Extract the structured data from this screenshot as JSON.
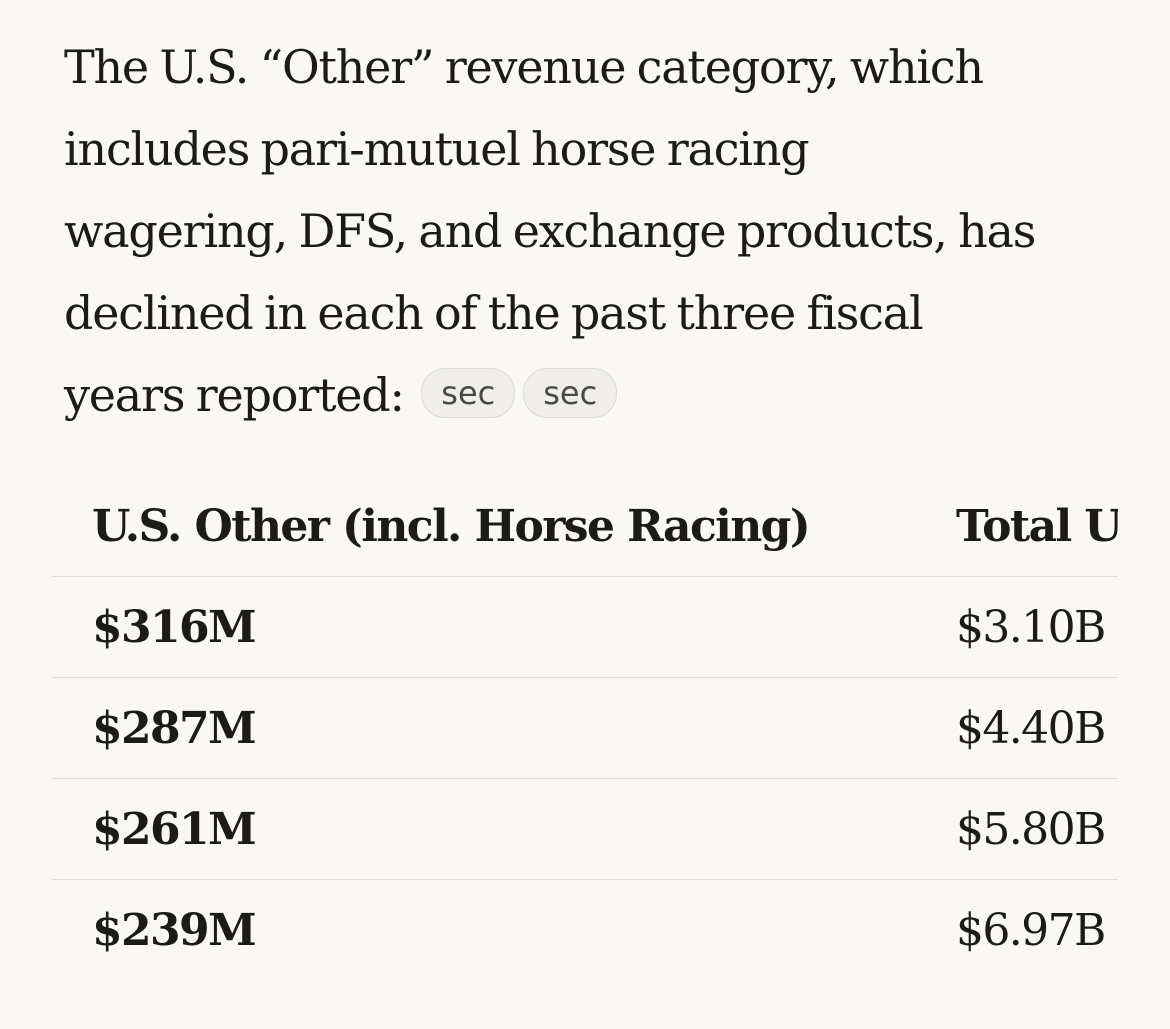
{
  "paragraph": {
    "lines": [
      "The U.S. “Other” revenue category, which",
      "includes pari-mutuel horse racing",
      "wagering, DFS, and exchange products, has",
      "declined in each of the past three fiscal",
      "years reported:"
    ],
    "citations": [
      "sec",
      "sec"
    ]
  },
  "table": {
    "headers": [
      "U.S. Other (incl. Horse Racing)",
      "Total U.S"
    ],
    "rows": [
      [
        "$316M",
        "$3.10B"
      ],
      [
        "$287M",
        "$4.40B"
      ],
      [
        "$261M",
        "$5.80B"
      ],
      [
        "$239M",
        "$6.97B"
      ]
    ]
  }
}
